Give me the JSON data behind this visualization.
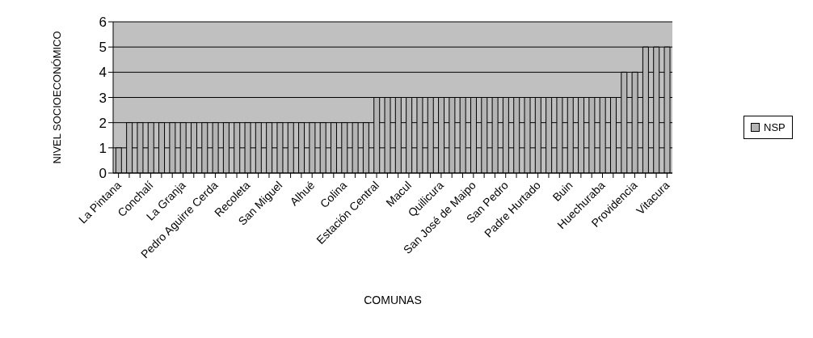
{
  "chart_data": {
    "type": "bar",
    "xlabel": "COMUNAS",
    "ylabel": "NIVEL SOCIOECONÓMICO",
    "categories": [
      "La Pintana",
      null,
      null,
      "Conchalí",
      null,
      null,
      "La Granja",
      null,
      null,
      "Pedro Aguirre Cerda",
      null,
      null,
      "Recoleta",
      null,
      null,
      "San Miguel",
      null,
      null,
      "Alhué",
      null,
      null,
      "Colina",
      null,
      null,
      "Estación Central",
      null,
      null,
      "Macul",
      null,
      null,
      "Quilicura",
      null,
      null,
      "San José de Maipo",
      null,
      null,
      "San Pedro",
      null,
      null,
      "Padre Hurtado",
      null,
      null,
      "Buin",
      null,
      null,
      "Huechuraba",
      null,
      null,
      "Providencia",
      null,
      null,
      "Vitacura"
    ],
    "series": [
      {
        "name": "NSP",
        "color": "#b4b4b4",
        "values": [
          1,
          2,
          2,
          2,
          2,
          2,
          2,
          2,
          2,
          2,
          2,
          2,
          2,
          2,
          2,
          2,
          2,
          2,
          2,
          2,
          2,
          2,
          2,
          2,
          3,
          3,
          3,
          3,
          3,
          3,
          3,
          3,
          3,
          3,
          3,
          3,
          3,
          3,
          3,
          3,
          3,
          3,
          3,
          3,
          3,
          3,
          3,
          4,
          4,
          5,
          5,
          5
        ]
      }
    ],
    "ylim": [
      0,
      6
    ],
    "yticks": [
      0,
      1,
      2,
      3,
      4,
      5,
      6
    ],
    "grid": "y",
    "legend": "right"
  }
}
